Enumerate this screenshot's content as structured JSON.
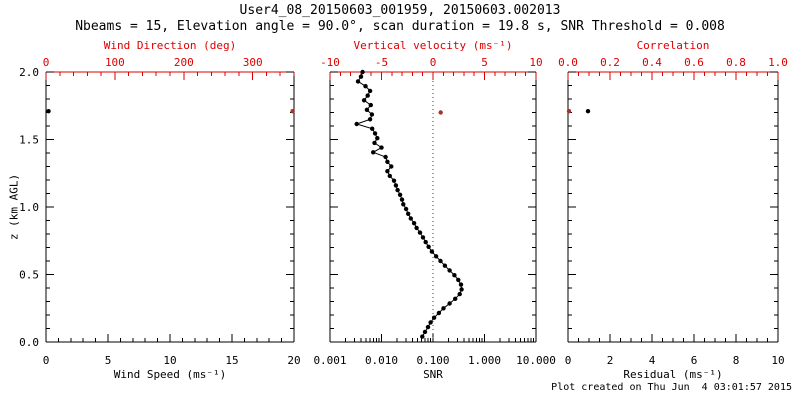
{
  "header": {
    "title": "User4_08_20150603_001959, 20150603.002013",
    "subtitle": "Nbeams = 15, Elevation angle = 90.0°, scan duration = 19.8 s, SNR Threshold = 0.008"
  },
  "footer": {
    "created_text": "Plot created on Thu Jun  4 03:01:57 2015"
  },
  "colors": {
    "primary_axis": "#000000",
    "secondary_axis": "#dd0000",
    "marker_black": "#000000",
    "marker_red": "#a93226",
    "zero_line": "#dd0000",
    "background": "#ffffff"
  },
  "chart_data": {
    "type": "scatter",
    "y_axis": {
      "label": "z (km AGL)",
      "range": [
        0,
        2
      ],
      "ticks": [
        "0.0",
        "0.5",
        "1.0",
        "1.5",
        "2.0"
      ],
      "minor_step": 0.1
    },
    "panels": [
      {
        "id": "wind",
        "top_axis": {
          "label": "Wind Direction (deg)",
          "range": [
            0,
            360
          ],
          "ticks": [
            "0",
            "100",
            "200",
            "300"
          ],
          "minor_step": 20,
          "scale": "linear"
        },
        "bottom_axis": {
          "label": "Wind Speed (ms⁻¹)",
          "range": [
            0,
            20
          ],
          "ticks": [
            "0",
            "5",
            "10",
            "15",
            "20"
          ],
          "minor_step": 1,
          "scale": "linear"
        },
        "series": [
          {
            "name": "wind-speed",
            "axis": "bottom",
            "color": "#000000",
            "connect": false,
            "points": [
              [
                1.71,
                0.2
              ]
            ]
          },
          {
            "name": "wind-direction",
            "axis": "top",
            "color": "#a93226",
            "connect": false,
            "points": [
              [
                1.71,
                358
              ]
            ]
          }
        ]
      },
      {
        "id": "snr",
        "top_axis": {
          "label": "Vertical velocity (ms⁻¹)",
          "range": [
            -10,
            10
          ],
          "ticks": [
            "-10",
            "-5",
            "0",
            "5",
            "10"
          ],
          "minor_step": 1,
          "scale": "linear"
        },
        "bottom_axis": {
          "label": "SNR",
          "range": [
            0.001,
            10
          ],
          "ticks": [
            "0.001",
            "0.010",
            "0.100",
            "1.000",
            "10.000"
          ],
          "scale": "log"
        },
        "zero_line": {
          "axis": "top",
          "value": 0
        },
        "series": [
          {
            "name": "snr-profile",
            "axis": "bottom",
            "color": "#000000",
            "connect": true,
            "points": [
              [
                2.0,
                0.0043
              ],
              [
                1.965,
                0.004
              ],
              [
                1.93,
                0.0035
              ],
              [
                1.895,
                0.0049
              ],
              [
                1.86,
                0.006
              ],
              [
                1.825,
                0.0054
              ],
              [
                1.79,
                0.0046
              ],
              [
                1.755,
                0.0062
              ],
              [
                1.72,
                0.0052
              ],
              [
                1.685,
                0.0065
              ],
              [
                1.65,
                0.006
              ],
              [
                1.615,
                0.0033
              ],
              [
                1.58,
                0.0066
              ],
              [
                1.545,
                0.0075
              ],
              [
                1.51,
                0.0083
              ],
              [
                1.475,
                0.0073
              ],
              [
                1.44,
                0.01
              ],
              [
                1.405,
                0.0069
              ],
              [
                1.37,
                0.012
              ],
              [
                1.335,
                0.013
              ],
              [
                1.3,
                0.0155
              ],
              [
                1.265,
                0.013
              ],
              [
                1.23,
                0.0145
              ],
              [
                1.195,
                0.0175
              ],
              [
                1.16,
                0.019
              ],
              [
                1.125,
                0.0205
              ],
              [
                1.09,
                0.023
              ],
              [
                1.055,
                0.025
              ],
              [
                1.02,
                0.0265
              ],
              [
                0.985,
                0.03
              ],
              [
                0.95,
                0.033
              ],
              [
                0.915,
                0.037
              ],
              [
                0.88,
                0.043
              ],
              [
                0.845,
                0.048
              ],
              [
                0.81,
                0.056
              ],
              [
                0.775,
                0.064
              ],
              [
                0.74,
                0.072
              ],
              [
                0.705,
                0.082
              ],
              [
                0.67,
                0.095
              ],
              [
                0.635,
                0.115
              ],
              [
                0.6,
                0.14
              ],
              [
                0.565,
                0.17
              ],
              [
                0.53,
                0.21
              ],
              [
                0.495,
                0.26
              ],
              [
                0.46,
                0.31
              ],
              [
                0.425,
                0.35
              ],
              [
                0.39,
                0.36
              ],
              [
                0.355,
                0.33
              ],
              [
                0.32,
                0.27
              ],
              [
                0.285,
                0.21
              ],
              [
                0.25,
                0.16
              ],
              [
                0.215,
                0.13
              ],
              [
                0.18,
                0.105
              ],
              [
                0.145,
                0.09
              ],
              [
                0.11,
                0.08
              ],
              [
                0.075,
                0.07
              ],
              [
                0.04,
                0.062
              ]
            ]
          },
          {
            "name": "vertical-velocity",
            "axis": "top",
            "color": "#a93226",
            "connect": false,
            "points": [
              [
                1.7,
                0.75
              ]
            ]
          }
        ]
      },
      {
        "id": "residual",
        "top_axis": {
          "label": "Correlation",
          "range": [
            0,
            1
          ],
          "ticks": [
            "0.0",
            "0.2",
            "0.4",
            "0.6",
            "0.8",
            "1.0"
          ],
          "minor_step": 0.05,
          "scale": "linear"
        },
        "bottom_axis": {
          "label": "Residual (ms⁻¹)",
          "range": [
            0,
            10
          ],
          "ticks": [
            "0",
            "2",
            "4",
            "6",
            "8",
            "10"
          ],
          "minor_step": 0.5,
          "scale": "linear"
        },
        "series": [
          {
            "name": "residual",
            "axis": "bottom",
            "color": "#000000",
            "connect": false,
            "points": [
              [
                1.71,
                0.95
              ]
            ]
          },
          {
            "name": "correlation",
            "axis": "top",
            "color": "#a93226",
            "connect": false,
            "points": [
              [
                1.71,
                0.005
              ]
            ]
          }
        ]
      }
    ]
  }
}
